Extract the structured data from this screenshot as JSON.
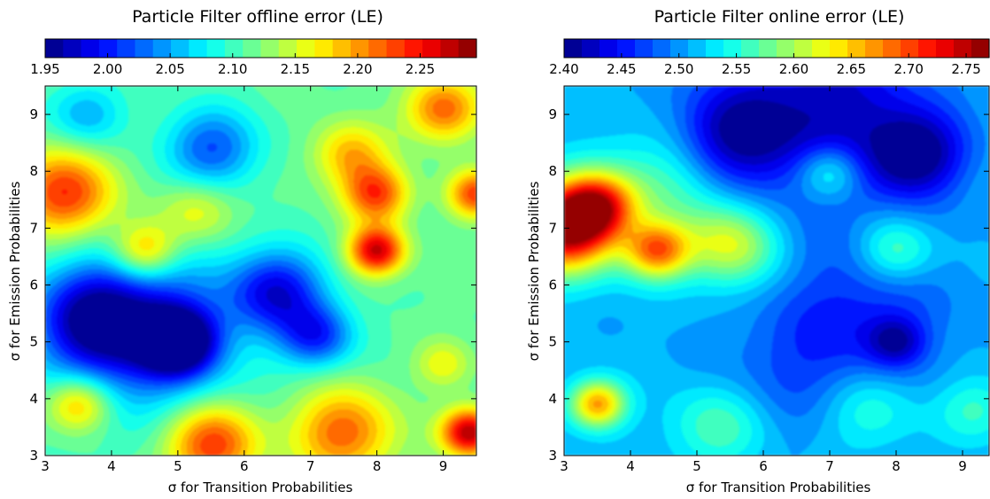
{
  "chart_data": [
    {
      "type": "heatmap",
      "title": "Particle Filter offline error (LE)",
      "xlabel": "σ for Transition Probabilities",
      "ylabel": "σ for Emission Probabilities",
      "xlim": [
        3,
        9.5
      ],
      "ylim": [
        3,
        9.5
      ],
      "x_ticks": [
        "3",
        "4",
        "5",
        "6",
        "7",
        "8",
        "9"
      ],
      "y_ticks": [
        "3",
        "4",
        "5",
        "6",
        "7",
        "8",
        "9"
      ],
      "colorbar": {
        "min": 1.95,
        "max": 2.295,
        "levels": 24,
        "placement": "top",
        "tick_values": [
          1.95,
          2.0,
          2.05,
          2.1,
          2.15,
          2.2,
          2.25
        ],
        "tick_labels": [
          "1.95",
          "2.00",
          "2.05",
          "2.10",
          "2.15",
          "2.20",
          "2.25"
        ]
      },
      "colormap": "jet",
      "base_value": 2.11,
      "features": [
        {
          "x": 3.3,
          "y": 7.6,
          "value": 2.24,
          "spread": 0.55
        },
        {
          "x": 4.5,
          "y": 6.6,
          "value": 2.21,
          "spread": 0.35
        },
        {
          "x": 8.0,
          "y": 6.6,
          "value": 2.27,
          "spread": 0.3
        },
        {
          "x": 8.0,
          "y": 7.6,
          "value": 2.23,
          "spread": 0.35
        },
        {
          "x": 7.6,
          "y": 8.3,
          "value": 2.19,
          "spread": 0.4
        },
        {
          "x": 9.0,
          "y": 9.1,
          "value": 2.22,
          "spread": 0.4
        },
        {
          "x": 9.5,
          "y": 7.6,
          "value": 2.23,
          "spread": 0.3
        },
        {
          "x": 5.5,
          "y": 3.2,
          "value": 2.24,
          "spread": 0.5
        },
        {
          "x": 7.5,
          "y": 3.4,
          "value": 2.22,
          "spread": 0.55
        },
        {
          "x": 9.4,
          "y": 3.4,
          "value": 2.28,
          "spread": 0.3
        },
        {
          "x": 3.5,
          "y": 3.9,
          "value": 2.21,
          "spread": 0.35
        },
        {
          "x": 5.3,
          "y": 7.3,
          "value": 2.17,
          "spread": 0.4
        },
        {
          "x": 4.4,
          "y": 5.2,
          "value": 1.99,
          "spread": 1.0
        },
        {
          "x": 5.0,
          "y": 5.0,
          "value": 1.96,
          "spread": 0.4
        },
        {
          "x": 6.5,
          "y": 5.9,
          "value": 1.99,
          "spread": 0.5
        },
        {
          "x": 5.5,
          "y": 8.4,
          "value": 2.02,
          "spread": 0.5
        },
        {
          "x": 7.1,
          "y": 5.1,
          "value": 2.01,
          "spread": 0.4
        },
        {
          "x": 3.7,
          "y": 5.4,
          "value": 2.02,
          "spread": 0.6
        },
        {
          "x": 3.6,
          "y": 9.0,
          "value": 2.05,
          "spread": 0.4
        },
        {
          "x": 9.0,
          "y": 4.6,
          "value": 2.16,
          "spread": 0.3
        }
      ]
    },
    {
      "type": "heatmap",
      "title": "Particle Filter online error (LE)",
      "xlabel": "σ for Transition Probabilities",
      "ylabel": "σ for Emission Probabilities",
      "xlim": [
        3,
        9.4
      ],
      "ylim": [
        3,
        9.5
      ],
      "x_ticks": [
        "3",
        "4",
        "5",
        "6",
        "7",
        "8",
        "9"
      ],
      "y_ticks": [
        "3",
        "4",
        "5",
        "6",
        "7",
        "8",
        "9"
      ],
      "colorbar": {
        "min": 2.4,
        "max": 2.77,
        "levels": 24,
        "placement": "top",
        "tick_values": [
          2.4,
          2.45,
          2.5,
          2.55,
          2.6,
          2.65,
          2.7,
          2.75
        ],
        "tick_labels": [
          "2.40",
          "2.45",
          "2.50",
          "2.55",
          "2.60",
          "2.65",
          "2.70",
          "2.75"
        ]
      },
      "colormap": "jet",
      "base_value": 2.51,
      "features": [
        {
          "x": 3.0,
          "y": 7.0,
          "value": 2.76,
          "spread": 0.55
        },
        {
          "x": 3.5,
          "y": 7.4,
          "value": 2.66,
          "spread": 0.4
        },
        {
          "x": 4.4,
          "y": 6.6,
          "value": 2.67,
          "spread": 0.35
        },
        {
          "x": 3.5,
          "y": 3.9,
          "value": 2.67,
          "spread": 0.3
        },
        {
          "x": 5.5,
          "y": 6.7,
          "value": 2.62,
          "spread": 0.5
        },
        {
          "x": 4.5,
          "y": 7.8,
          "value": 2.57,
          "spread": 0.7
        },
        {
          "x": 7.0,
          "y": 8.0,
          "value": 2.59,
          "spread": 0.35
        },
        {
          "x": 8.0,
          "y": 6.6,
          "value": 2.58,
          "spread": 0.4
        },
        {
          "x": 5.3,
          "y": 3.5,
          "value": 2.57,
          "spread": 0.5
        },
        {
          "x": 7.6,
          "y": 3.8,
          "value": 2.56,
          "spread": 0.5
        },
        {
          "x": 9.2,
          "y": 3.8,
          "value": 2.56,
          "spread": 0.4
        },
        {
          "x": 6.9,
          "y": 9.0,
          "value": 2.42,
          "spread": 1.1
        },
        {
          "x": 8.3,
          "y": 8.3,
          "value": 2.41,
          "spread": 0.5
        },
        {
          "x": 5.5,
          "y": 8.6,
          "value": 2.43,
          "spread": 0.6
        },
        {
          "x": 7.5,
          "y": 5.5,
          "value": 2.46,
          "spread": 0.9
        },
        {
          "x": 8.0,
          "y": 5.0,
          "value": 2.44,
          "spread": 0.3
        },
        {
          "x": 6.5,
          "y": 4.5,
          "value": 2.48,
          "spread": 0.8
        }
      ]
    }
  ]
}
